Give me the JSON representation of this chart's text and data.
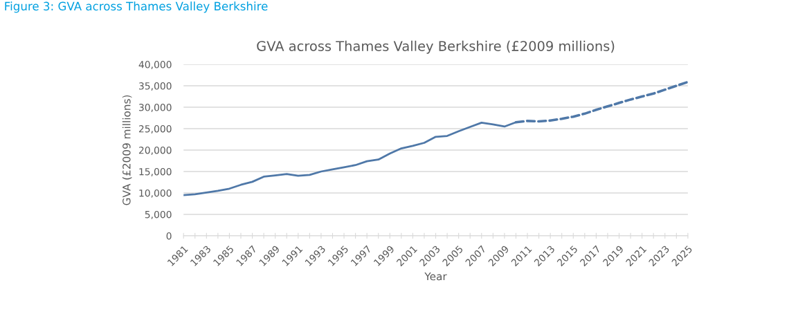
{
  "chart_data": {
    "type": "line",
    "title": "GVA across Thames Valley Berkshire (£2009 millions)",
    "xlabel": "Year",
    "ylabel": "GVA (£2009 millions)",
    "annotations": [
      "Figure 3: GVA across Thames Valley Berkshire"
    ],
    "categories": [
      "1981",
      null,
      "1983",
      null,
      "1985",
      null,
      "1987",
      null,
      "1989",
      null,
      "1991",
      null,
      "1993",
      null,
      "1995",
      null,
      "1997",
      null,
      "1999",
      null,
      "2001",
      null,
      "2003",
      null,
      "2005",
      null,
      "2007",
      null,
      "2009",
      null,
      "2011",
      null,
      "2013",
      null,
      "2015",
      null,
      "2017",
      null,
      "2019",
      null,
      "2021",
      null,
      "2023",
      null,
      "2025"
    ],
    "series": [
      {
        "color": "#4f78a8",
        "line_style": "solid",
        "values": [
          9500,
          9700,
          10100,
          10500,
          11000,
          11900,
          12600,
          13800,
          14100,
          14400,
          14000,
          14200,
          15000,
          15500,
          16000,
          16500,
          17400,
          17800,
          19200,
          20400,
          21000,
          21700,
          23100,
          23300,
          24400,
          25400,
          26400,
          26000,
          25500,
          26500,
          null,
          null,
          null,
          null,
          null,
          null,
          null,
          null,
          null,
          null,
          null,
          null,
          null,
          null,
          null
        ]
      },
      {
        "color": "#4f78a8",
        "line_style": "dashed",
        "values": [
          null,
          null,
          null,
          null,
          null,
          null,
          null,
          null,
          null,
          null,
          null,
          null,
          null,
          null,
          null,
          null,
          null,
          null,
          null,
          null,
          null,
          null,
          null,
          null,
          null,
          null,
          null,
          null,
          null,
          26500,
          26800,
          26700,
          26900,
          27300,
          27800,
          28500,
          29400,
          30200,
          31000,
          31800,
          32500,
          33200,
          34100,
          35000,
          35900
        ]
      }
    ],
    "ylim": [
      0,
      40000
    ],
    "yticks": [
      {
        "value": 0,
        "label": "0"
      },
      {
        "value": 5000,
        "label": "5,000"
      },
      {
        "value": 10000,
        "label": "10,000"
      },
      {
        "value": 15000,
        "label": "15,000"
      },
      {
        "value": 20000,
        "label": "20,000"
      },
      {
        "value": 25000,
        "label": "25,000"
      },
      {
        "value": 30000,
        "label": "30,000"
      },
      {
        "value": 35000,
        "label": "35,000"
      },
      {
        "value": 40000,
        "label": "40,000"
      }
    ],
    "grid": "y",
    "marker": "none"
  }
}
